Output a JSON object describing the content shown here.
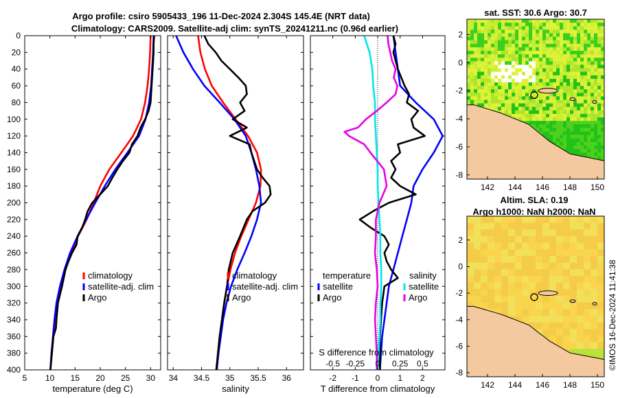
{
  "header": {
    "title_line1": "Argo profile: csiro 5905433_196 11-Dec-2024 2.304S 145.4E (NRT data)",
    "title_line2": "Climatology: CARS2009. Satellite-adj clim: synTS_20241211.nc (0.96d earlier)"
  },
  "colors": {
    "climatology": "#ff0000",
    "satellite": "#0000ff",
    "argo": "#000000",
    "salinity_diff_sat": "#00e5ee",
    "salinity_diff_argo": "#e600e6",
    "land": "#f5c9a0"
  },
  "chart_data": [
    {
      "type": "line",
      "name": "temperature-profile",
      "xlabel": "temperature (deg C)",
      "ylabel": "depth",
      "xlim": [
        5,
        32
      ],
      "ylim": [
        400,
        0
      ],
      "xticks": [
        5,
        10,
        15,
        20,
        25,
        30
      ],
      "yticks": [
        0,
        20,
        40,
        60,
        80,
        100,
        120,
        140,
        160,
        180,
        200,
        220,
        240,
        260,
        280,
        300,
        320,
        340,
        360,
        380,
        400
      ],
      "legend": [
        "climatology",
        "satellite-adj. clim",
        "Argo"
      ],
      "series": [
        {
          "name": "climatology",
          "depth": [
            0,
            20,
            40,
            60,
            80,
            100,
            120,
            140,
            160,
            180,
            200,
            220,
            240,
            260,
            280,
            300,
            320,
            340,
            360,
            380,
            400
          ],
          "values": [
            30.0,
            29.9,
            29.7,
            29.4,
            28.9,
            28.1,
            26.5,
            24.2,
            21.8,
            20.0,
            18.7,
            17.3,
            15.6,
            14.2,
            13.1,
            12.2,
            11.5,
            11.0,
            10.7,
            10.4,
            10.1
          ]
        },
        {
          "name": "satellite-adj. clim",
          "depth": [
            0,
            20,
            40,
            60,
            80,
            100,
            120,
            140,
            160,
            180,
            200,
            220,
            240,
            260,
            280,
            300,
            320,
            340,
            360,
            380,
            400
          ],
          "values": [
            30.6,
            30.5,
            30.3,
            30.1,
            29.7,
            29.0,
            27.7,
            25.4,
            23.0,
            20.9,
            19.0,
            17.2,
            15.5,
            14.0,
            12.9,
            12.0,
            11.3,
            10.9,
            10.6,
            10.3,
            10.1
          ]
        },
        {
          "name": "Argo",
          "depth": [
            0,
            10,
            20,
            40,
            60,
            80,
            90,
            100,
            110,
            120,
            130,
            140,
            150,
            160,
            170,
            180,
            190,
            200,
            210,
            220,
            230,
            240,
            250,
            260,
            270,
            280,
            300,
            320,
            340,
            350,
            360,
            380,
            400
          ],
          "values": [
            30.7,
            30.6,
            30.6,
            30.4,
            30.2,
            30.0,
            29.6,
            28.9,
            28.0,
            27.4,
            26.3,
            25.8,
            24.5,
            23.4,
            22.4,
            21.5,
            20.0,
            18.4,
            17.5,
            17.0,
            16.4,
            15.5,
            15.3,
            14.4,
            13.7,
            13.1,
            12.4,
            11.6,
            11.3,
            11.2,
            10.7,
            10.4,
            10.1
          ]
        }
      ]
    },
    {
      "type": "line",
      "name": "salinity-profile",
      "xlabel": "salinity",
      "xlim": [
        33.9,
        36.3
      ],
      "ylim": [
        400,
        0
      ],
      "xticks": [
        34,
        34.5,
        35,
        35.5,
        36
      ],
      "legend": [
        "climatology",
        "satellite-adj. clim",
        "Argo"
      ],
      "series": [
        {
          "name": "climatology",
          "depth": [
            0,
            20,
            40,
            60,
            80,
            100,
            120,
            140,
            160,
            180,
            200,
            220,
            240,
            260,
            280,
            300,
            320,
            340,
            360,
            380,
            400
          ],
          "values": [
            34.44,
            34.48,
            34.56,
            34.68,
            34.88,
            35.1,
            35.32,
            35.48,
            35.55,
            35.54,
            35.46,
            35.33,
            35.2,
            35.09,
            35.01,
            34.95,
            34.9,
            34.86,
            34.82,
            34.79,
            34.77
          ]
        },
        {
          "name": "satellite-adj. clim",
          "depth": [
            0,
            20,
            40,
            60,
            80,
            100,
            120,
            140,
            160,
            180,
            200,
            220,
            240,
            260,
            280,
            300,
            320,
            340,
            360,
            380,
            400
          ],
          "values": [
            34.05,
            34.18,
            34.35,
            34.55,
            34.82,
            35.08,
            35.28,
            35.38,
            35.46,
            35.52,
            35.55,
            35.48,
            35.38,
            35.26,
            35.13,
            35.02,
            34.94,
            34.88,
            34.84,
            34.8,
            34.77
          ]
        },
        {
          "name": "Argo",
          "depth": [
            0,
            10,
            20,
            30,
            40,
            50,
            60,
            70,
            80,
            90,
            100,
            110,
            120,
            130,
            140,
            150,
            160,
            170,
            180,
            190,
            200,
            210,
            220,
            240,
            260,
            280,
            300,
            320,
            340,
            360,
            380,
            400
          ],
          "values": [
            34.55,
            34.62,
            34.75,
            34.85,
            35.0,
            35.15,
            35.28,
            35.3,
            35.18,
            35.26,
            35.05,
            35.3,
            35.0,
            35.35,
            35.38,
            35.43,
            35.48,
            35.58,
            35.7,
            35.72,
            35.62,
            35.4,
            35.3,
            35.18,
            35.05,
            34.98,
            34.95,
            34.9,
            34.86,
            34.82,
            34.79,
            34.76
          ]
        }
      ]
    },
    {
      "type": "line",
      "name": "difference-profile",
      "xlabel": "T difference from climatology",
      "top_label": "S difference from climatology",
      "xlim": [
        -3,
        3
      ],
      "ylim": [
        400,
        0
      ],
      "xticks": [
        -2,
        -1,
        0,
        1,
        2
      ],
      "top_ticks": [
        "-0.5",
        "-0.25",
        "0",
        "0.25",
        "0.5"
      ],
      "zero_line": "dotted",
      "legend_titles": [
        "temperature",
        "salinity"
      ],
      "legend": [
        "satellite",
        "Argo",
        "satellite",
        "Argo"
      ],
      "series": [
        {
          "name": "temperature satellite",
          "depth": [
            0,
            20,
            40,
            60,
            80,
            100,
            120,
            140,
            160,
            180,
            200,
            220,
            240,
            260,
            280,
            300,
            320,
            340,
            360,
            380,
            400
          ],
          "values": [
            0.7,
            0.8,
            0.9,
            1.0,
            1.7,
            2.5,
            2.9,
            2.5,
            2.0,
            1.6,
            1.5,
            1.3,
            1.1,
            0.9,
            0.7,
            0.5,
            0.4,
            0.3,
            0.2,
            0.15,
            0.1
          ]
        },
        {
          "name": "temperature Argo",
          "depth": [
            0,
            10,
            20,
            40,
            60,
            70,
            80,
            90,
            100,
            110,
            120,
            130,
            140,
            150,
            160,
            170,
            180,
            190,
            200,
            210,
            215,
            220,
            230,
            240,
            250,
            260,
            270,
            280,
            290,
            300,
            320,
            340,
            360,
            380,
            400
          ],
          "values": [
            0.7,
            0.8,
            0.7,
            0.9,
            1.2,
            1.4,
            1.3,
            1.8,
            1.5,
            1.6,
            2.1,
            0.9,
            1.0,
            0.6,
            0.8,
            0.6,
            1.0,
            1.7,
            0.5,
            -0.2,
            -0.5,
            -0.8,
            -0.3,
            0.3,
            0.5,
            0.3,
            0.4,
            0.6,
            0.9,
            0.3,
            0.2,
            0.15,
            0.1,
            0.1,
            0.1
          ]
        },
        {
          "name": "salinity satellite",
          "depth": [
            0,
            10,
            20,
            40,
            60,
            80,
            100,
            120,
            140,
            160,
            180,
            200,
            220,
            240,
            260,
            280,
            300,
            320,
            340,
            360,
            380,
            400
          ],
          "values": [
            -0.15,
            -0.12,
            -0.09,
            -0.06,
            -0.05,
            -0.03,
            -0.03,
            -0.02,
            -0.01,
            0.0,
            0.0,
            0.01,
            0.02,
            0.03,
            0.03,
            0.04,
            0.04,
            0.03,
            0.03,
            0.02,
            0.01,
            0.0
          ]
        },
        {
          "name": "salinity Argo",
          "depth": [
            0,
            10,
            20,
            30,
            40,
            50,
            60,
            70,
            80,
            90,
            100,
            110,
            115,
            120,
            130,
            140,
            160,
            180,
            200,
            220,
            240,
            260,
            280,
            300,
            320,
            340,
            360,
            380,
            400
          ],
          "values": [
            0.11,
            0.12,
            0.14,
            0.16,
            0.2,
            0.18,
            0.22,
            0.2,
            0.1,
            -0.01,
            -0.13,
            -0.22,
            -0.37,
            -0.32,
            -0.15,
            -0.08,
            0.07,
            0.1,
            0.02,
            -0.02,
            -0.02,
            -0.03,
            -0.01,
            0.0,
            -0.02,
            -0.03,
            -0.02,
            -0.01,
            -0.01
          ]
        }
      ]
    },
    {
      "type": "heatmap",
      "name": "sst-map",
      "title": "sat. SST: 30.6 Argo: 30.7",
      "xlim": [
        140.5,
        150.5
      ],
      "ylim": [
        -8.3,
        3.1
      ],
      "xticks": [
        142,
        144,
        146,
        148,
        150
      ],
      "yticks": [
        2,
        0,
        -2,
        -4,
        -6,
        -8
      ],
      "marker": {
        "lon": 145.4,
        "lat": -2.304
      }
    },
    {
      "type": "heatmap",
      "name": "sla-map",
      "title_line1": "Altim. SLA: 0.19",
      "title_line2": "Argo h1000: NaN h2000: NaN",
      "xlim": [
        140.5,
        150.5
      ],
      "ylim": [
        -8.3,
        3.8
      ],
      "xticks": [
        142,
        144,
        146,
        148,
        150
      ],
      "yticks": [
        2,
        0,
        -2,
        -4,
        -6,
        -8
      ],
      "marker": {
        "lon": 145.4,
        "lat": -2.304
      }
    }
  ],
  "footer": {
    "stamp": "©IMOS 16-Dec-2024 11:41:38"
  }
}
